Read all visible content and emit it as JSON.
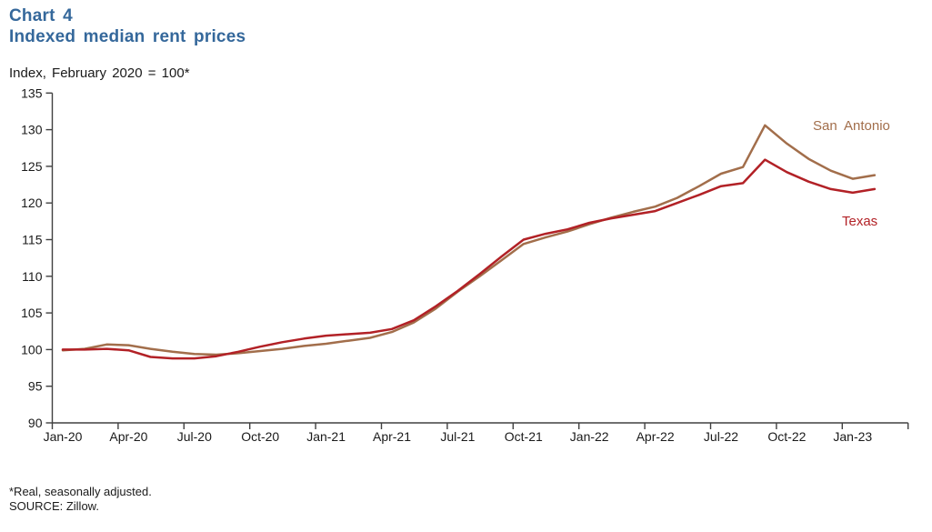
{
  "header": {
    "chart_label": "Chart 4",
    "title": "Indexed median rent prices",
    "subtitle": "Index, February 2020 = 100*"
  },
  "colors": {
    "title": "#35689B",
    "axis": "#404040",
    "tick_text": "#1a1a1a",
    "san_antonio": "#A26E4B",
    "texas": "#B22126"
  },
  "chart_data": {
    "type": "line",
    "title": "Indexed median rent prices",
    "index_note": "Index, February 2020 = 100*",
    "grid": false,
    "legend_position": "direct labels at line ends",
    "ylim": [
      90,
      135
    ],
    "y_ticks": [
      90,
      95,
      100,
      105,
      110,
      115,
      120,
      125,
      130,
      135
    ],
    "x_tick_labels": [
      "Jan-20",
      "Apr-20",
      "Jul-20",
      "Oct-20",
      "Jan-21",
      "Apr-21",
      "Jul-21",
      "Oct-21",
      "Jan-22",
      "Apr-22",
      "Jul-22",
      "Oct-22",
      "Jan-23"
    ],
    "x": [
      "Jan-20",
      "Feb-20",
      "Mar-20",
      "Apr-20",
      "May-20",
      "Jun-20",
      "Jul-20",
      "Aug-20",
      "Sep-20",
      "Oct-20",
      "Nov-20",
      "Dec-20",
      "Jan-21",
      "Feb-21",
      "Mar-21",
      "Apr-21",
      "May-21",
      "Jun-21",
      "Jul-21",
      "Aug-21",
      "Sep-21",
      "Oct-21",
      "Nov-21",
      "Dec-21",
      "Jan-22",
      "Feb-22",
      "Mar-22",
      "Apr-22",
      "May-22",
      "Jun-22",
      "Jul-22",
      "Aug-22",
      "Sep-22",
      "Oct-22",
      "Nov-22",
      "Dec-22",
      "Jan-23",
      "Feb-23"
    ],
    "series": [
      {
        "name": "San Antonio",
        "color_key": "san_antonio",
        "values": [
          99.9,
          100.1,
          100.7,
          100.6,
          100.1,
          99.7,
          99.4,
          99.3,
          99.5,
          99.8,
          100.1,
          100.5,
          100.8,
          101.2,
          101.6,
          102.4,
          103.7,
          105.6,
          107.9,
          110.0,
          112.2,
          114.4,
          115.3,
          116.1,
          117.1,
          118.0,
          118.8,
          119.5,
          120.7,
          122.3,
          124.0,
          124.9,
          130.6,
          128.1,
          126.0,
          124.4,
          123.3,
          123.8
        ]
      },
      {
        "name": "Texas",
        "color_key": "texas",
        "values": [
          100.0,
          100.0,
          100.1,
          99.9,
          99.0,
          98.8,
          98.8,
          99.1,
          99.7,
          100.4,
          101.0,
          101.5,
          101.9,
          102.1,
          102.3,
          102.8,
          104.0,
          105.9,
          108.0,
          110.3,
          112.7,
          115.0,
          115.8,
          116.4,
          117.3,
          117.9,
          118.4,
          118.9,
          120.0,
          121.1,
          122.3,
          122.7,
          125.9,
          124.2,
          122.9,
          121.9,
          121.4,
          121.9
        ]
      }
    ]
  },
  "footnotes": {
    "note": "*Real, seasonally adjusted.",
    "source": "SOURCE:  Zillow."
  }
}
